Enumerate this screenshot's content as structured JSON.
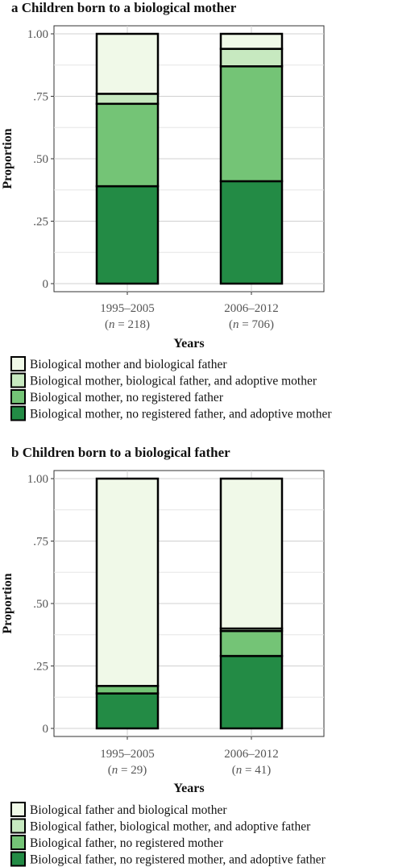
{
  "chart_data": [
    {
      "type": "bar",
      "stacked": true,
      "title": "a Children born to a biological mother",
      "xlabel": "Years",
      "ylabel": "Proportion",
      "ylim": [
        0,
        1
      ],
      "ytick_labels": [
        "0",
        ".25",
        ".50",
        ".75",
        "1.00"
      ],
      "ytick_values": [
        0,
        0.25,
        0.5,
        0.75,
        1.0
      ],
      "categories": [
        "1995–2005",
        "2006–2012"
      ],
      "category_n": [
        "218",
        "706"
      ],
      "grid": true,
      "legend_position": "bottom",
      "series": [
        {
          "name": "Biological mother, no registered father, and adoptive mother",
          "color": "#238b45",
          "values": [
            0.39,
            0.41
          ]
        },
        {
          "name": "Biological mother, no registered father",
          "color": "#74c476",
          "values": [
            0.33,
            0.46
          ]
        },
        {
          "name": "Biological mother, biological father, and adoptive mother",
          "color": "#c7e9c0",
          "values": [
            0.04,
            0.07
          ]
        },
        {
          "name": "Biological mother and biological father",
          "color": "#f0f9e8",
          "values": [
            0.24,
            0.06
          ]
        }
      ]
    },
    {
      "type": "bar",
      "stacked": true,
      "title": "b Children born to a biological father",
      "xlabel": "Years",
      "ylabel": "Proportion",
      "ylim": [
        0,
        1
      ],
      "ytick_labels": [
        "0",
        ".25",
        ".50",
        ".75",
        "1.00"
      ],
      "ytick_values": [
        0,
        0.25,
        0.5,
        0.75,
        1.0
      ],
      "categories": [
        "1995–2005",
        "2006–2012"
      ],
      "category_n": [
        "29",
        "41"
      ],
      "grid": true,
      "legend_position": "bottom",
      "series": [
        {
          "name": "Biological father, no registered mother, and adoptive father",
          "color": "#238b45",
          "values": [
            0.14,
            0.29
          ]
        },
        {
          "name": "Biological father, no registered mother",
          "color": "#74c476",
          "values": [
            0.03,
            0.1
          ]
        },
        {
          "name": "Biological father, biological mother, and adoptive father",
          "color": "#c7e9c0",
          "values": [
            0.0,
            0.01
          ]
        },
        {
          "name": "Biological father and biological mother",
          "color": "#f0f9e8",
          "values": [
            0.83,
            0.6
          ]
        }
      ]
    }
  ],
  "n_label_prefix": "(",
  "n_label_italic": "n",
  "n_label_mid": " = ",
  "n_label_suffix": ")"
}
